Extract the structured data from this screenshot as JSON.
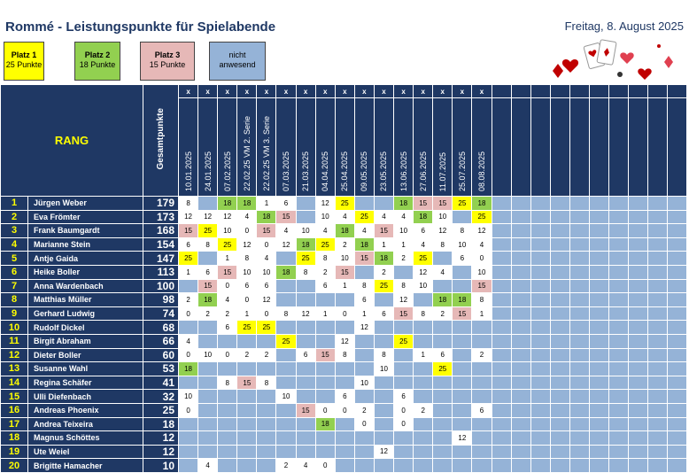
{
  "title": "Rommé - Leistungspunkte für Spielabende",
  "date": "Freitag, 8. August 2025",
  "legend": [
    {
      "title": "Platz 1",
      "sub": "25 Punkte",
      "color": "#ffff00"
    },
    {
      "title": "Platz 2",
      "sub": "18 Punkte",
      "color": "#92d050"
    },
    {
      "title": "Platz 3",
      "sub": "15 Punkte",
      "color": "#e6b8b7"
    },
    {
      "title": "nicht",
      "sub": "anwesend",
      "color": "#95b3d7"
    }
  ],
  "header": {
    "rang": "RANG",
    "gesamt": "Gesamtpunkte",
    "x_mark": "x"
  },
  "dates": [
    "10.01.2025",
    "24.01.2025",
    "07.02.2025",
    "22.02.25 VM 2. Serie",
    "22.02.25 VM 3. Serie",
    "07.03.2025",
    "21.03.2025",
    "04.04.2025",
    "25.04.2025",
    "09.05.2025",
    "23.05.2025",
    "13.06.2025",
    "27.06.2025",
    "11.07.2025",
    "25.07.2025",
    "08.08.2025"
  ],
  "empty_columns": 10,
  "players": [
    {
      "rank": "1",
      "name": "Jürgen Weber",
      "total": "179",
      "scores": [
        "8",
        "",
        "18",
        "18",
        "1",
        "6",
        "",
        "12",
        "25",
        "",
        "",
        "18",
        "15",
        "15",
        "25",
        "18"
      ]
    },
    {
      "rank": "2",
      "name": "Eva Frömter",
      "total": "173",
      "scores": [
        "12",
        "12",
        "12",
        "4",
        "18",
        "15",
        "",
        "10",
        "4",
        "25",
        "4",
        "4",
        "18",
        "10",
        "",
        "25"
      ]
    },
    {
      "rank": "3",
      "name": "Frank Baumgardt",
      "total": "168",
      "scores": [
        "15",
        "25",
        "10",
        "0",
        "15",
        "4",
        "10",
        "4",
        "18",
        "4",
        "15",
        "10",
        "6",
        "12",
        "8",
        "12"
      ]
    },
    {
      "rank": "4",
      "name": "Marianne Stein",
      "total": "154",
      "scores": [
        "6",
        "8",
        "25",
        "12",
        "0",
        "12",
        "18",
        "25",
        "2",
        "18",
        "1",
        "1",
        "4",
        "8",
        "10",
        "4"
      ]
    },
    {
      "rank": "5",
      "name": "Antje Gaida",
      "total": "147",
      "scores": [
        "25",
        "",
        "1",
        "8",
        "4",
        "",
        "25",
        "8",
        "10",
        "15",
        "18",
        "2",
        "25",
        "",
        "6",
        "0"
      ]
    },
    {
      "rank": "6",
      "name": "Heike Boller",
      "total": "113",
      "scores": [
        "1",
        "6",
        "15",
        "10",
        "10",
        "18",
        "8",
        "2",
        "15",
        "",
        "2",
        "",
        "12",
        "4",
        "",
        "10"
      ]
    },
    {
      "rank": "7",
      "name": "Anna Wardenbach",
      "total": "100",
      "scores": [
        "",
        "15",
        "0",
        "6",
        "6",
        "",
        "",
        "6",
        "1",
        "8",
        "25",
        "8",
        "10",
        "",
        "",
        "15"
      ]
    },
    {
      "rank": "8",
      "name": "Matthias Müller",
      "total": "98",
      "scores": [
        "2",
        "18",
        "4",
        "0",
        "12",
        "",
        "",
        "",
        "",
        "6",
        "",
        "12",
        "",
        "18",
        "18",
        "8"
      ]
    },
    {
      "rank": "9",
      "name": "Gerhard Ludwig",
      "total": "74",
      "scores": [
        "0",
        "2",
        "2",
        "1",
        "0",
        "8",
        "12",
        "1",
        "0",
        "1",
        "6",
        "15",
        "8",
        "2",
        "15",
        "1"
      ]
    },
    {
      "rank": "10",
      "name": "Rudolf Dickel",
      "total": "68",
      "scores": [
        "",
        "",
        "6",
        "25",
        "25",
        "",
        "",
        "",
        "",
        "12",
        "",
        "",
        "",
        "",
        "",
        ""
      ]
    },
    {
      "rank": "11",
      "name": "Birgit Abraham",
      "total": "66",
      "scores": [
        "4",
        "",
        "",
        "",
        "",
        "25",
        "",
        "",
        "12",
        "",
        "",
        "25",
        "",
        "",
        "",
        ""
      ]
    },
    {
      "rank": "12",
      "name": "Dieter Boller",
      "total": "60",
      "scores": [
        "0",
        "10",
        "0",
        "2",
        "2",
        "",
        "6",
        "15",
        "8",
        "",
        "8",
        "",
        "1",
        "6",
        "",
        "2"
      ]
    },
    {
      "rank": "13",
      "name": "Susanne Wahl",
      "total": "53",
      "scores": [
        "18",
        "",
        "",
        "",
        "",
        "",
        "",
        "",
        "",
        "",
        "10",
        "",
        "",
        "25",
        "",
        ""
      ]
    },
    {
      "rank": "14",
      "name": "Regina Schäfer",
      "total": "41",
      "scores": [
        "",
        "",
        "8",
        "15",
        "8",
        "",
        "",
        "",
        "",
        "10",
        "",
        "",
        "",
        "",
        "",
        ""
      ]
    },
    {
      "rank": "15",
      "name": "Ulli Diefenbach",
      "total": "32",
      "scores": [
        "10",
        "",
        "",
        "",
        "",
        "10",
        "",
        "",
        "6",
        "",
        "",
        "6",
        "",
        "",
        "",
        ""
      ]
    },
    {
      "rank": "16",
      "name": "Andreas Phoenix",
      "total": "25",
      "scores": [
        "0",
        "",
        "",
        "",
        "",
        "",
        "15",
        "0",
        "0",
        "2",
        "",
        "0",
        "2",
        "",
        "",
        "6"
      ]
    },
    {
      "rank": "17",
      "name": "Andrea Teixeira",
      "total": "18",
      "scores": [
        "",
        "",
        "",
        "",
        "",
        "",
        "",
        "18",
        "",
        "0",
        "",
        "0",
        "",
        "",
        "",
        ""
      ]
    },
    {
      "rank": "18",
      "name": "Magnus Schöttes",
      "total": "12",
      "scores": [
        "",
        "",
        "",
        "",
        "",
        "",
        "",
        "",
        "",
        "",
        "",
        "",
        "",
        "",
        "12",
        ""
      ]
    },
    {
      "rank": "19",
      "name": "Ute Weiel",
      "total": "12",
      "scores": [
        "",
        "",
        "",
        "",
        "",
        "",
        "",
        "",
        "",
        "",
        "12",
        "",
        "",
        "",
        "",
        ""
      ]
    },
    {
      "rank": "20",
      "name": "Brigitte Hamacher",
      "total": "10",
      "scores": [
        "",
        "4",
        "",
        "",
        "",
        "2",
        "4",
        "0",
        "",
        "",
        "",
        "",
        "",
        "",
        "",
        ""
      ]
    }
  ]
}
